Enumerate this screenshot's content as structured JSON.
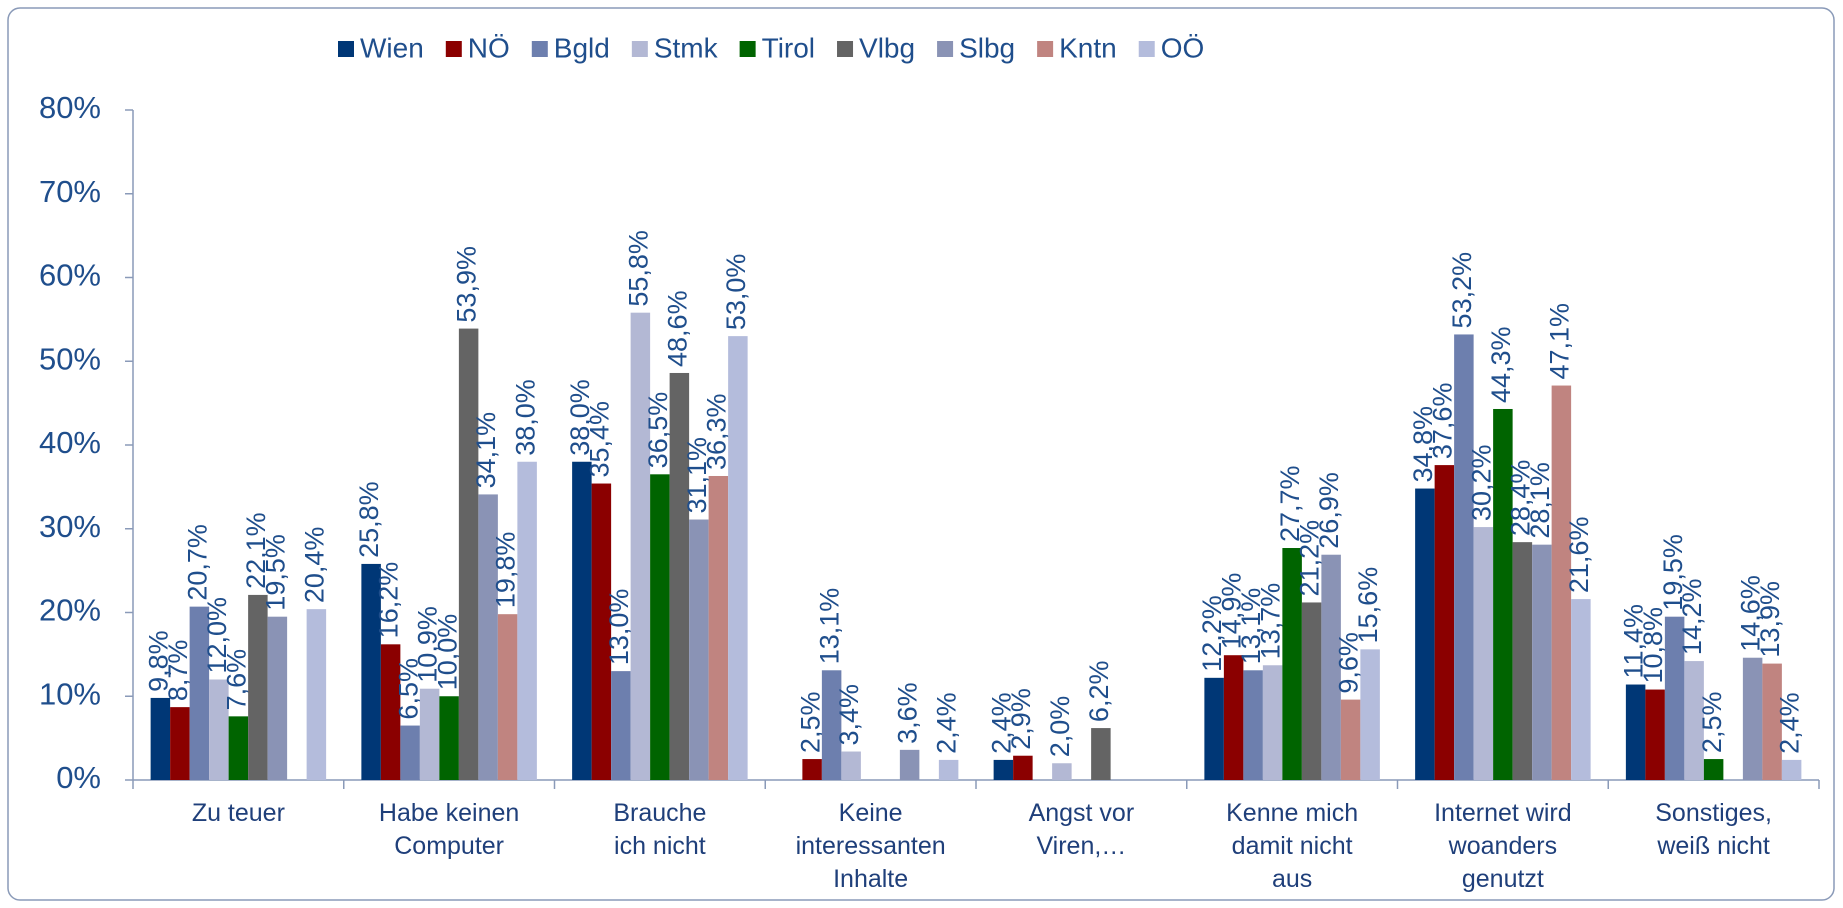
{
  "chart_data": {
    "type": "bar",
    "categories": [
      "Zu teuer",
      "Habe keinen\nComputer",
      "Brauche\nich nicht",
      "Keine\ninteressanten\nInhalte",
      "Angst vor\nViren,…",
      "Kenne mich\ndamit nicht\naus",
      "Internet wird\nwoanders\ngenutzt",
      "Sonstiges,\nweiß nicht"
    ],
    "series": [
      {
        "name": "Wien",
        "color": "#003776",
        "values": [
          9.8,
          25.8,
          38.0,
          null,
          2.4,
          12.2,
          34.8,
          11.4
        ],
        "value_labels": [
          "9,8%",
          "25,8%",
          "38,0%",
          null,
          "2,4%",
          "12,2%",
          "34,8%",
          "11,4%"
        ]
      },
      {
        "name": "NÖ",
        "color": "#8b0000",
        "values": [
          8.7,
          16.2,
          35.4,
          2.5,
          2.9,
          14.9,
          37.6,
          10.8
        ],
        "value_labels": [
          "8,7%",
          "16,2%",
          "35,4%",
          "2,5%",
          "2,9%",
          "14,9%",
          "37,6%",
          "10,8%"
        ]
      },
      {
        "name": "Bgld",
        "color": "#6d7fae",
        "values": [
          20.7,
          6.5,
          13.0,
          13.1,
          null,
          13.1,
          53.2,
          19.5
        ],
        "value_labels": [
          "20,7%",
          "6,5%",
          "13,0%",
          "13,1%",
          null,
          "13,1%",
          "53,2%",
          "19,5%"
        ]
      },
      {
        "name": "Stmk",
        "color": "#b3b8d4",
        "values": [
          12.0,
          10.9,
          55.8,
          3.4,
          2.0,
          13.7,
          30.2,
          14.2
        ],
        "value_labels": [
          "12,0%",
          "10,9%",
          "55,8%",
          "3,4%",
          "2,0%",
          "13,7%",
          "30,2%",
          "14,2%"
        ]
      },
      {
        "name": "Tirol",
        "color": "#006400",
        "values": [
          7.6,
          10.0,
          36.5,
          null,
          null,
          27.7,
          44.3,
          2.5
        ],
        "value_labels": [
          "7,6%",
          "10,0%",
          "36,5%",
          null,
          null,
          "27,7%",
          "44,3%",
          "2,5%"
        ]
      },
      {
        "name": "Vlbg",
        "color": "#646464",
        "values": [
          22.1,
          53.9,
          48.6,
          null,
          6.2,
          21.2,
          28.4,
          null
        ],
        "value_labels": [
          "22,1%",
          "53,9%",
          "48,6%",
          null,
          "6,2%",
          "21,2%",
          "28,4%",
          null
        ]
      },
      {
        "name": "Slbg",
        "color": "#8a93b5",
        "values": [
          19.5,
          34.1,
          31.1,
          3.6,
          null,
          26.9,
          28.1,
          14.6
        ],
        "value_labels": [
          "19,5%",
          "34,1%",
          "31,1%",
          "3,6%",
          null,
          "26,9%",
          "28,1%",
          "14,6%"
        ]
      },
      {
        "name": "Kntn",
        "color": "#c08480",
        "values": [
          null,
          19.8,
          36.3,
          null,
          null,
          9.6,
          47.1,
          13.9
        ],
        "value_labels": [
          null,
          "19,8%",
          "36,3%",
          null,
          null,
          "9,6%",
          "47,1%",
          "13,9%"
        ]
      },
      {
        "name": "OÖ",
        "color": "#b4bcdc",
        "values": [
          20.4,
          38.0,
          53.0,
          2.4,
          null,
          15.6,
          21.6,
          2.4
        ],
        "value_labels": [
          "20,4%",
          "38,0%",
          "53,0%",
          "2,4%",
          null,
          "15,6%",
          "21,6%",
          "2,4%"
        ]
      }
    ],
    "ylim": [
      0,
      80
    ],
    "yticks": [
      {
        "value": 0,
        "label": "0%"
      },
      {
        "value": 10,
        "label": "10%"
      },
      {
        "value": 20,
        "label": "20%"
      },
      {
        "value": 30,
        "label": "30%"
      },
      {
        "value": 40,
        "label": "40%"
      },
      {
        "value": 50,
        "label": "50%"
      },
      {
        "value": 60,
        "label": "60%"
      },
      {
        "value": 70,
        "label": "70%"
      },
      {
        "value": 80,
        "label": "80%"
      }
    ],
    "legend": "top"
  }
}
